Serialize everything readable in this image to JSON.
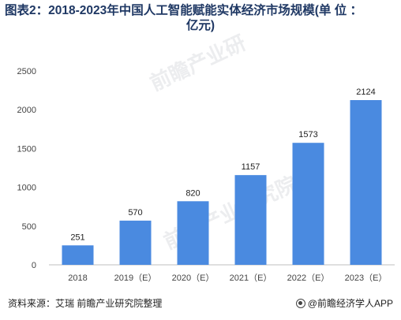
{
  "title_line1": "图表2：2018-2023年中国人工智能赋能实体经济市场规模(单 位 ：",
  "title_line2": "亿元)",
  "source": "资料来源：艾瑞 前瞻产业研究院整理",
  "brand": "@前瞻经济学人APP",
  "watermark": "前瞻产业研究院",
  "colors": {
    "bar": "#4a8ae0",
    "axis": "#bfbfbf",
    "title": "#1f3864"
  },
  "chart_data": {
    "type": "bar",
    "categories": [
      "2018",
      "2019（E）",
      "2020（E）",
      "2021（E）",
      "2022（E）",
      "2023（E）"
    ],
    "values": [
      251,
      570,
      820,
      1157,
      1573,
      2124
    ],
    "ylim": [
      0,
      2500
    ],
    "yticks": [
      0,
      500,
      1000,
      1500,
      2000,
      2500
    ],
    "grid": false,
    "data_labels": true
  }
}
